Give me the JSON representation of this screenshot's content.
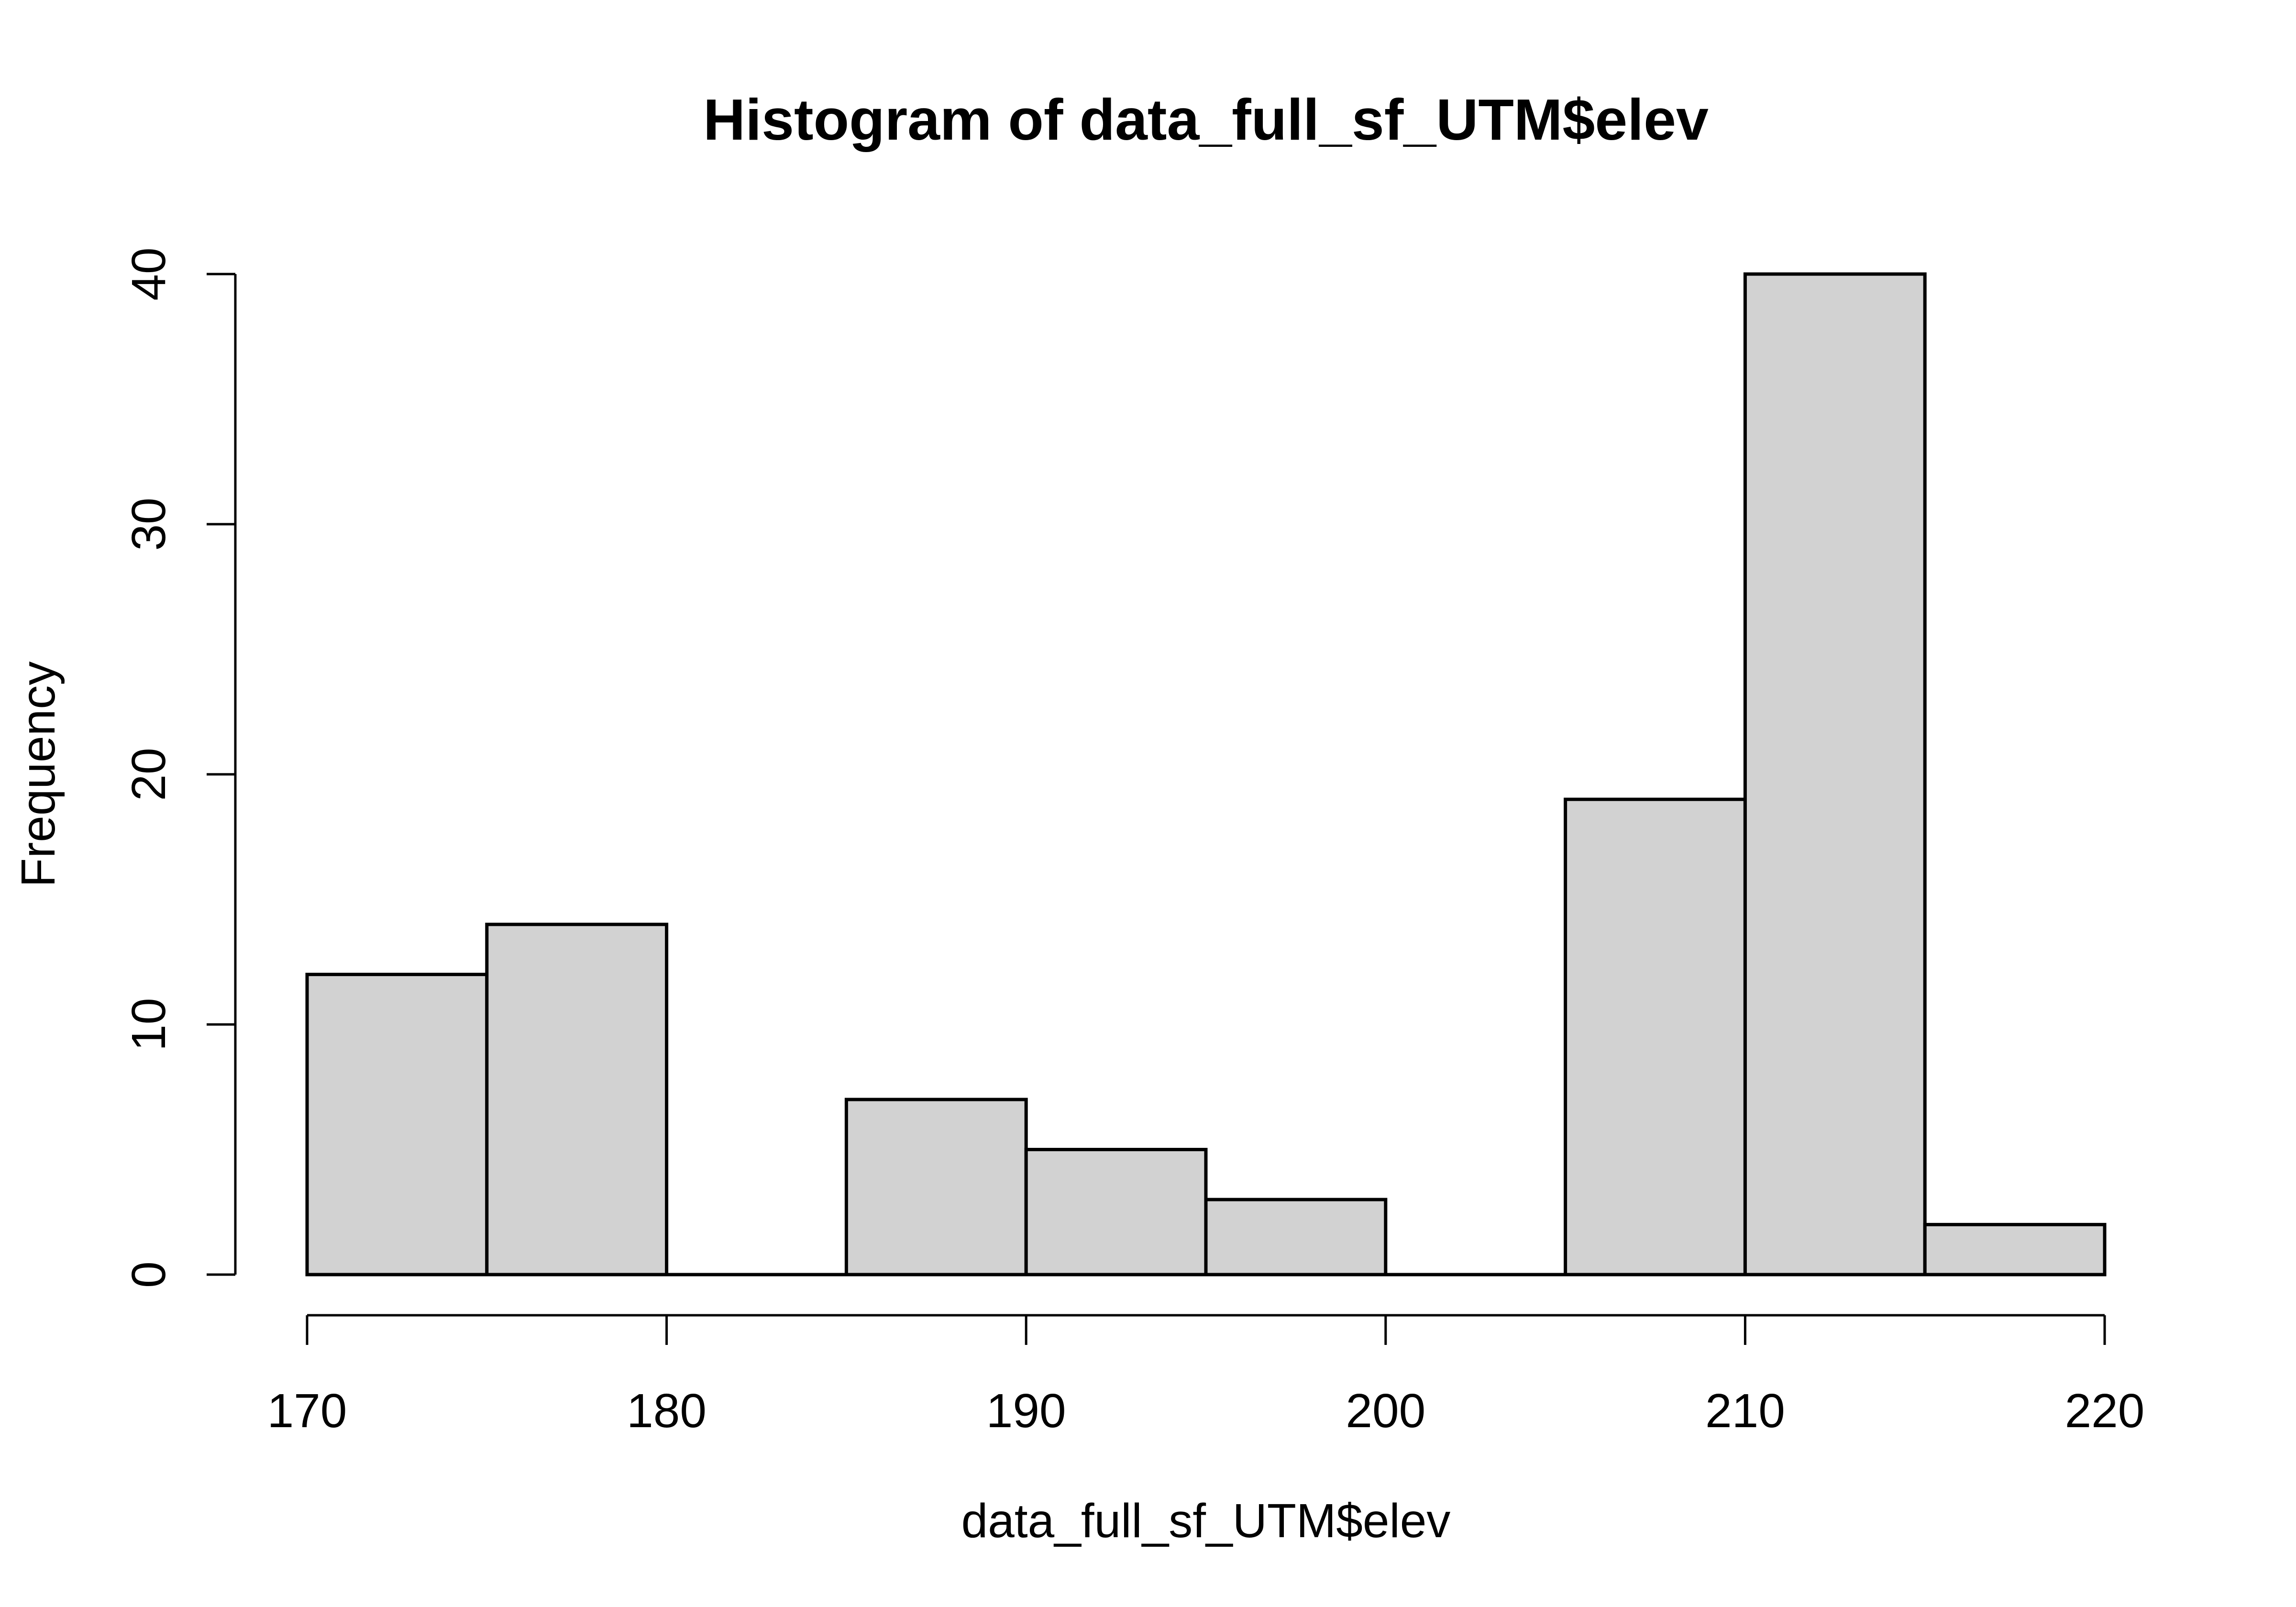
{
  "title": "Histogram of data_full_sf_UTM$elev",
  "x_axis": {
    "label": "data_full_sf_UTM$elev",
    "ticks": [
      170,
      180,
      190,
      200,
      210,
      220
    ]
  },
  "y_axis": {
    "label": "Frequency",
    "ticks": [
      0,
      10,
      20,
      30,
      40
    ]
  },
  "colors": {
    "background": "#ffffff",
    "bar_fill": "#d2d2d2",
    "bar_border": "#000000",
    "text": "#000000"
  },
  "chart_data": {
    "type": "bar",
    "subtype": "histogram",
    "title": "Histogram of data_full_sf_UTM$elev",
    "xlabel": "data_full_sf_UTM$elev",
    "ylabel": "Frequency",
    "bin_edges": [
      170,
      175,
      180,
      185,
      190,
      195,
      200,
      205,
      210,
      215,
      220
    ],
    "counts": [
      12,
      14,
      0,
      7,
      5,
      3,
      0,
      19,
      40,
      2
    ],
    "bin_width": 5,
    "xlim": [
      170,
      220
    ],
    "ylim": [
      0,
      40
    ],
    "grid": "off",
    "legend": "none"
  }
}
